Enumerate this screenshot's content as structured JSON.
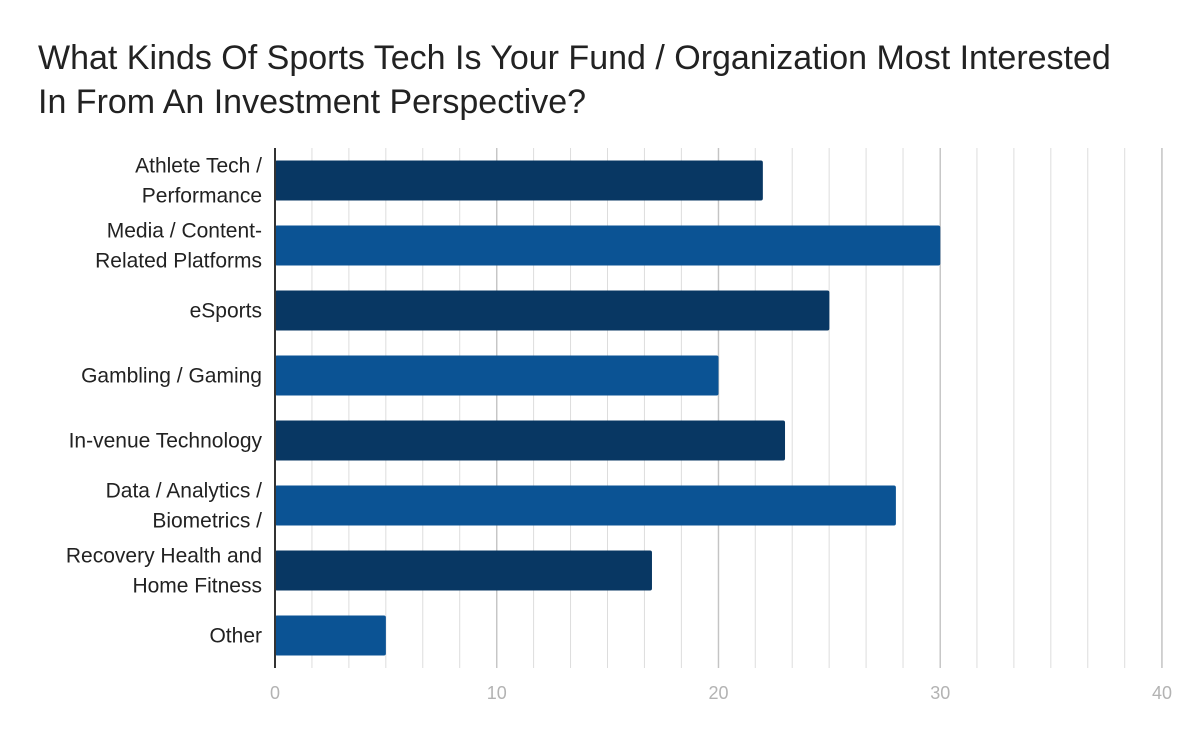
{
  "chart_data": {
    "type": "bar",
    "orientation": "horizontal",
    "title": "What Kinds Of Sports Tech Is Your Fund / Organization Most Interested In From An Investment Perspective?",
    "categories": [
      [
        "Athlete Tech /",
        "Performance"
      ],
      [
        "Media / Content-",
        "Related Platforms"
      ],
      [
        "eSports"
      ],
      [
        "Gambling / Gaming"
      ],
      [
        "In-venue Technology"
      ],
      [
        "Data / Analytics /",
        "Biometrics /"
      ],
      [
        "Recovery Health and",
        "Home Fitness"
      ],
      [
        "Other"
      ]
    ],
    "values": [
      22,
      30,
      25,
      20,
      23,
      28,
      17,
      5
    ],
    "colors": [
      "#083763",
      "#0b5394"
    ],
    "xlim": [
      0,
      40
    ],
    "xticks": [
      "0",
      "10",
      "20",
      "30",
      "40"
    ],
    "minor_grid_step": 1.666,
    "grid": true,
    "xlabel": "",
    "ylabel": ""
  }
}
